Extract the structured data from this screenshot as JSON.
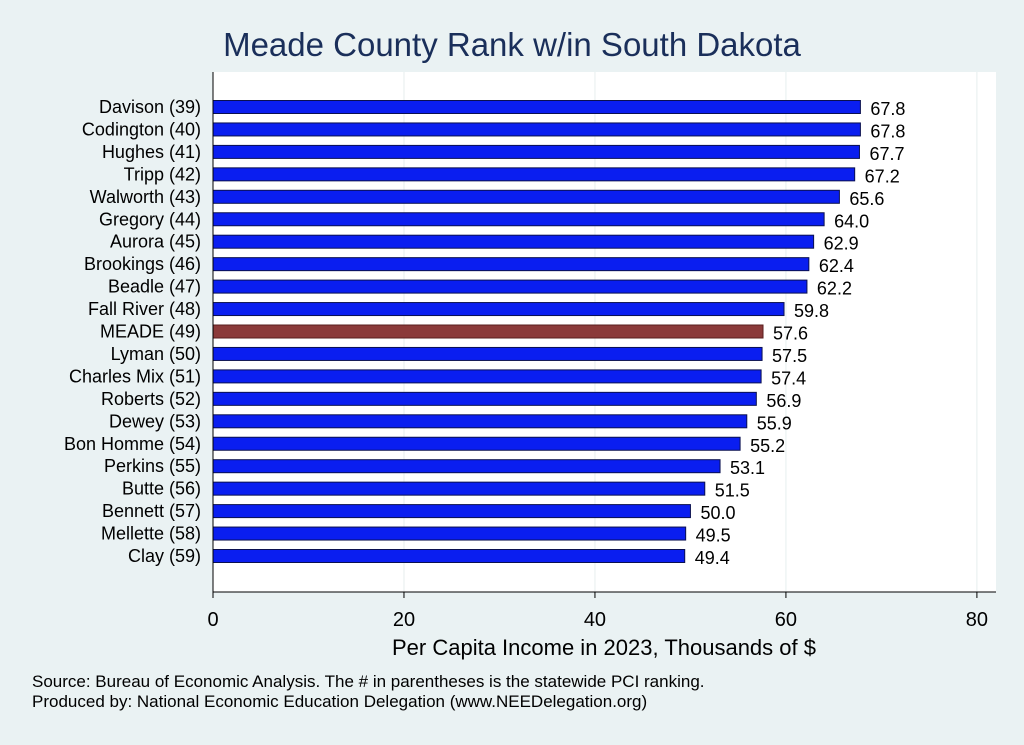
{
  "chart_data": {
    "type": "bar",
    "orientation": "horizontal",
    "title": "Meade County Rank w/in South Dakota",
    "xlabel": "Per Capita Income in 2023, Thousands of $",
    "ylabel": "",
    "xlim": [
      0,
      82
    ],
    "xticks": [
      0,
      20,
      40,
      60,
      80
    ],
    "grid": true,
    "categories": [
      "Davison (39)",
      "Codington (40)",
      "Hughes (41)",
      "Tripp (42)",
      "Walworth (43)",
      "Gregory (44)",
      "Aurora (45)",
      "Brookings (46)",
      "Beadle (47)",
      "Fall River (48)",
      "MEADE (49)",
      "Lyman (50)",
      "Charles Mix (51)",
      "Roberts (52)",
      "Dewey (53)",
      "Bon Homme (54)",
      "Perkins (55)",
      "Butte (56)",
      "Bennett (57)",
      "Mellette (58)",
      "Clay (59)"
    ],
    "values": [
      67.8,
      67.8,
      67.7,
      67.2,
      65.6,
      64.0,
      62.9,
      62.4,
      62.2,
      59.8,
      57.6,
      57.5,
      57.4,
      56.9,
      55.9,
      55.2,
      53.1,
      51.5,
      50.0,
      49.5,
      49.4
    ],
    "value_labels": [
      "67.8",
      "67.8",
      "67.7",
      "67.2",
      "65.6",
      "64.0",
      "62.9",
      "62.4",
      "62.2",
      "59.8",
      "57.6",
      "57.5",
      "57.4",
      "56.9",
      "55.9",
      "55.2",
      "53.1",
      "51.5",
      "50.0",
      "49.5",
      "49.4"
    ],
    "highlight_index": 10,
    "colors": {
      "bar": "#0a1ef0",
      "highlight": "#8b3a3a",
      "plot_bg": "#ffffff",
      "page_bg": "#eaf2f3",
      "grid": "#e6eeee"
    }
  },
  "footer": {
    "source": "Source: Bureau of Economic Analysis. The # in parentheses is the statewide PCI ranking.",
    "produced": "Produced by: National Economic Education Delegation (www.NEEDelegation.org)"
  }
}
